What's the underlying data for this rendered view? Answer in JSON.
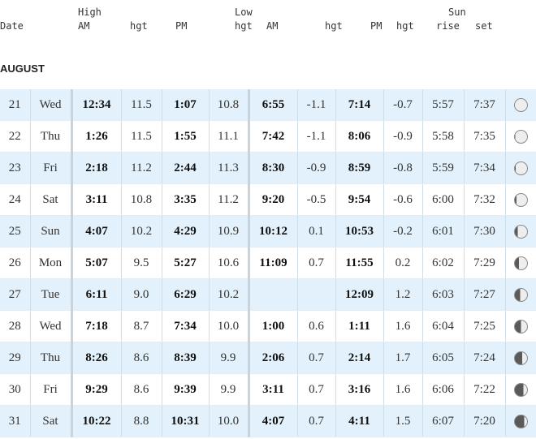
{
  "header": {
    "date": "Date",
    "high": "High",
    "high_am": "AM",
    "high_hgt1": "hgt",
    "high_pm": "PM",
    "low": "Low",
    "low_hgt_label": "hgt",
    "low_am": "AM",
    "low_hgt1": "hgt",
    "low_pm": "PM",
    "low_hgt2": "hgt",
    "sun": "Sun",
    "rise": "rise",
    "set": "set"
  },
  "month": "AUGUST",
  "rows": [
    {
      "day": "21",
      "dow": "Wed",
      "hi_am": "12:34",
      "hi_am_h": "11.5",
      "hi_pm": "1:07",
      "hi_pm_h": "10.8",
      "lo_am": "6:55",
      "lo_am_h": "-1.1",
      "lo_pm": "7:14",
      "lo_pm_h": "-0.7",
      "rise": "5:57",
      "set": "7:37",
      "moon": "full",
      "illum": 1.0
    },
    {
      "day": "22",
      "dow": "Thu",
      "hi_am": "1:26",
      "hi_am_h": "11.5",
      "hi_pm": "1:55",
      "hi_pm_h": "11.1",
      "lo_am": "7:42",
      "lo_am_h": "-1.1",
      "lo_pm": "8:06",
      "lo_pm_h": "-0.9",
      "rise": "5:58",
      "set": "7:35",
      "moon": "waning-gibbous",
      "illum": 0.97
    },
    {
      "day": "23",
      "dow": "Fri",
      "hi_am": "2:18",
      "hi_am_h": "11.2",
      "hi_pm": "2:44",
      "hi_pm_h": "11.3",
      "lo_am": "8:30",
      "lo_am_h": "-0.9",
      "lo_pm": "8:59",
      "lo_pm_h": "-0.8",
      "rise": "5:59",
      "set": "7:34",
      "moon": "waning-gibbous",
      "illum": 0.92
    },
    {
      "day": "24",
      "dow": "Sat",
      "hi_am": "3:11",
      "hi_am_h": "10.8",
      "hi_pm": "3:35",
      "hi_pm_h": "11.2",
      "lo_am": "9:20",
      "lo_am_h": "-0.5",
      "lo_pm": "9:54",
      "lo_pm_h": "-0.6",
      "rise": "6:00",
      "set": "7:32",
      "moon": "waning-gibbous",
      "illum": 0.86
    },
    {
      "day": "25",
      "dow": "Sun",
      "hi_am": "4:07",
      "hi_am_h": "10.2",
      "hi_pm": "4:29",
      "hi_pm_h": "10.9",
      "lo_am": "10:12",
      "lo_am_h": "0.1",
      "lo_pm": "10:53",
      "lo_pm_h": "-0.2",
      "rise": "6:01",
      "set": "7:30",
      "moon": "waning-gibbous",
      "illum": 0.78
    },
    {
      "day": "26",
      "dow": "Mon",
      "hi_am": "5:07",
      "hi_am_h": "9.5",
      "hi_pm": "5:27",
      "hi_pm_h": "10.6",
      "lo_am": "11:09",
      "lo_am_h": "0.7",
      "lo_pm": "11:55",
      "lo_pm_h": "0.2",
      "rise": "6:02",
      "set": "7:29",
      "moon": "waning-gibbous",
      "illum": 0.68
    },
    {
      "day": "27",
      "dow": "Tue",
      "hi_am": "6:11",
      "hi_am_h": "9.0",
      "hi_pm": "6:29",
      "hi_pm_h": "10.2",
      "lo_am": "",
      "lo_am_h": "",
      "lo_pm": "12:09",
      "lo_pm_h": "1.2",
      "rise": "6:03",
      "set": "7:27",
      "moon": "waning-gibbous",
      "illum": 0.58
    },
    {
      "day": "28",
      "dow": "Wed",
      "hi_am": "7:18",
      "hi_am_h": "8.7",
      "hi_pm": "7:34",
      "hi_pm_h": "10.0",
      "lo_am": "1:00",
      "lo_am_h": "0.6",
      "lo_pm": "1:11",
      "lo_pm_h": "1.6",
      "rise": "6:04",
      "set": "7:25",
      "moon": "last-quarter",
      "illum": 0.5
    },
    {
      "day": "29",
      "dow": "Thu",
      "hi_am": "8:26",
      "hi_am_h": "8.6",
      "hi_pm": "8:39",
      "hi_pm_h": "9.9",
      "lo_am": "2:06",
      "lo_am_h": "0.7",
      "lo_pm": "2:14",
      "lo_pm_h": "1.7",
      "rise": "6:05",
      "set": "7:24",
      "moon": "waning-crescent",
      "illum": 0.4
    },
    {
      "day": "30",
      "dow": "Fri",
      "hi_am": "9:29",
      "hi_am_h": "8.6",
      "hi_pm": "9:39",
      "hi_pm_h": "9.9",
      "lo_am": "3:11",
      "lo_am_h": "0.7",
      "lo_pm": "3:16",
      "lo_pm_h": "1.6",
      "rise": "6:06",
      "set": "7:22",
      "moon": "waning-crescent",
      "illum": 0.3
    },
    {
      "day": "31",
      "dow": "Sat",
      "hi_am": "10:22",
      "hi_am_h": "8.8",
      "hi_pm": "10:31",
      "hi_pm_h": "10.0",
      "lo_am": "4:07",
      "lo_am_h": "0.7",
      "lo_pm": "4:11",
      "lo_pm_h": "1.5",
      "rise": "6:07",
      "set": "7:20",
      "moon": "waning-crescent",
      "illum": 0.22
    }
  ],
  "colors": {
    "row_shade": "#e2f1fb",
    "moon_lit": "#eeeeee",
    "moon_dark": "#5a5a5a"
  }
}
